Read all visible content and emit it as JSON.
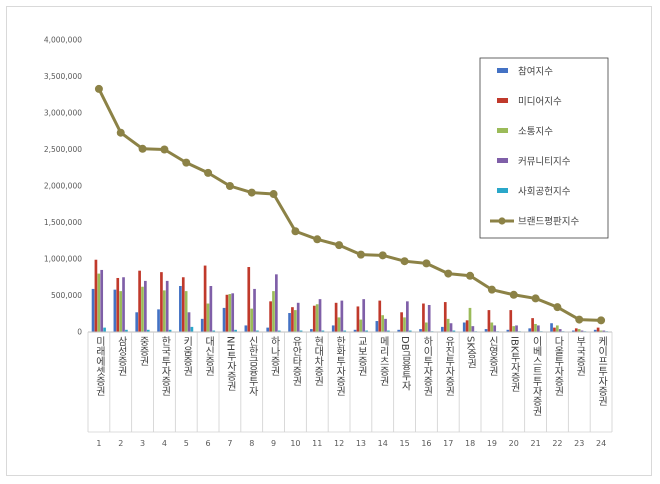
{
  "chart_data": {
    "type": "bar",
    "title": "",
    "xlabel": "",
    "ylabel": "",
    "ylim": [
      0,
      4000000
    ],
    "y_ticks": [
      "0",
      "500,000",
      "1,000,000",
      "1,500,000",
      "2,000,000",
      "2,500,000",
      "3,000,000",
      "3,500,000",
      "4,000,000"
    ],
    "grid": false,
    "legend_position": "right",
    "categories": [
      "미래에셋증권",
      "삼성증권",
      "중증권",
      "한국투자증권",
      "키움증권",
      "대신증권",
      "NH투자증권",
      "신한금융투자",
      "하나증권",
      "유안타증권",
      "현대차증권",
      "한화투자증권",
      "교보증권",
      "메리츠증권",
      "DB금융투자",
      "하이투자증권",
      "유진투자증권",
      "SK증권",
      "신영증권",
      "IBK투자증권",
      "이베스트투자증권",
      "다올투자증권",
      "부국증권",
      "케이프투자증권"
    ],
    "ranks": [
      "1",
      "2",
      "3",
      "4",
      "5",
      "6",
      "7",
      "8",
      "9",
      "10",
      "11",
      "12",
      "13",
      "14",
      "15",
      "16",
      "17",
      "18",
      "19",
      "20",
      "21",
      "22",
      "23",
      "24"
    ],
    "series": [
      {
        "name": "참여지수",
        "kind": "bar",
        "color": "#4472c4",
        "values": [
          590000,
          580000,
          270000,
          310000,
          630000,
          180000,
          330000,
          90000,
          60000,
          260000,
          40000,
          90000,
          30000,
          150000,
          30000,
          40000,
          70000,
          130000,
          40000,
          30000,
          50000,
          120000,
          20000,
          30000
        ]
      },
      {
        "name": "미디어지수",
        "kind": "bar",
        "color": "#c0392b",
        "values": [
          990000,
          740000,
          840000,
          820000,
          750000,
          910000,
          510000,
          890000,
          420000,
          340000,
          360000,
          400000,
          350000,
          430000,
          270000,
          390000,
          410000,
          160000,
          300000,
          300000,
          190000,
          60000,
          50000,
          60000
        ]
      },
      {
        "name": "소통지수",
        "kind": "bar",
        "color": "#9bbb59",
        "values": [
          800000,
          560000,
          620000,
          570000,
          560000,
          390000,
          520000,
          320000,
          560000,
          300000,
          380000,
          200000,
          170000,
          230000,
          200000,
          130000,
          180000,
          330000,
          130000,
          80000,
          110000,
          90000,
          40000,
          20000
        ]
      },
      {
        "name": "커뮤니티지수",
        "kind": "bar",
        "color": "#7f5fa8",
        "values": [
          850000,
          750000,
          700000,
          700000,
          270000,
          630000,
          530000,
          590000,
          790000,
          400000,
          450000,
          430000,
          450000,
          180000,
          420000,
          370000,
          120000,
          80000,
          90000,
          90000,
          90000,
          40000,
          20000,
          20000
        ]
      },
      {
        "name": "사회공헌지수",
        "kind": "bar",
        "color": "#2aa7c9",
        "values": [
          60000,
          30000,
          30000,
          30000,
          70000,
          20000,
          30000,
          20000,
          20000,
          20000,
          20000,
          20000,
          20000,
          20000,
          20000,
          10000,
          20000,
          10000,
          10000,
          10000,
          10000,
          10000,
          10000,
          10000
        ]
      },
      {
        "name": "브랜드평판지수",
        "kind": "line",
        "color": "#8c8246",
        "values": [
          3330000,
          2730000,
          2510000,
          2500000,
          2320000,
          2180000,
          2000000,
          1910000,
          1890000,
          1380000,
          1270000,
          1190000,
          1060000,
          1050000,
          970000,
          940000,
          800000,
          770000,
          580000,
          510000,
          460000,
          340000,
          170000,
          160000
        ]
      }
    ]
  }
}
